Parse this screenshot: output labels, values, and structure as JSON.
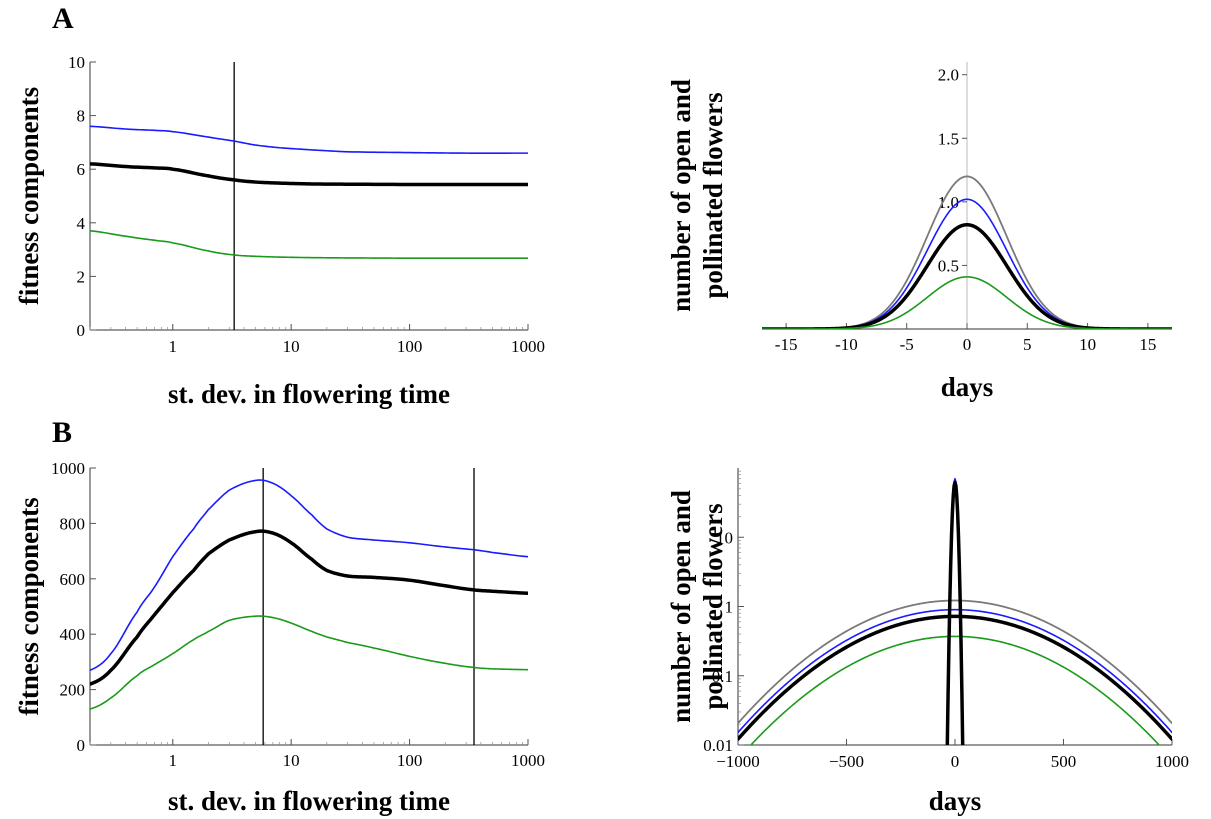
{
  "panel_labels": [
    "A",
    "B"
  ],
  "colors": {
    "blue": "#1a1aff",
    "black": "#000000",
    "green": "#1a9a1a",
    "gray": "#7a7a7a"
  },
  "chart_data": [
    {
      "id": "A-left",
      "type": "line",
      "xscale": "log",
      "xlim": [
        0.2,
        1000
      ],
      "ylim": [
        0,
        10
      ],
      "xticks": [
        {
          "v": 1,
          "label": "1"
        },
        {
          "v": 10,
          "label": "10"
        },
        {
          "v": 100,
          "label": "100"
        },
        {
          "v": 1000,
          "label": "1000"
        }
      ],
      "yticks": [
        {
          "v": 0,
          "label": "0"
        },
        {
          "v": 2,
          "label": "2"
        },
        {
          "v": 4,
          "label": "4"
        },
        {
          "v": 6,
          "label": "6"
        },
        {
          "v": 8,
          "label": "8"
        },
        {
          "v": 10,
          "label": "10"
        }
      ],
      "xlabel": "st. dev. in flowering time",
      "ylabel": "fitness components",
      "vlines": [
        3.3
      ],
      "series": [
        {
          "color": "blue",
          "width": 1.6,
          "x": [
            0.2,
            0.4,
            0.7,
            1,
            2,
            3.3,
            5,
            8,
            15,
            30,
            100,
            300,
            1000
          ],
          "y": [
            7.6,
            7.5,
            7.45,
            7.4,
            7.2,
            7.05,
            6.9,
            6.8,
            6.72,
            6.65,
            6.62,
            6.6,
            6.6
          ]
        },
        {
          "color": "black",
          "width": 3.5,
          "x": [
            0.2,
            0.4,
            0.7,
            1,
            2,
            3.3,
            5,
            8,
            15,
            30,
            100,
            300,
            1000
          ],
          "y": [
            6.2,
            6.1,
            6.05,
            6.0,
            5.75,
            5.6,
            5.52,
            5.48,
            5.45,
            5.44,
            5.43,
            5.43,
            5.43
          ]
        },
        {
          "color": "green",
          "width": 1.6,
          "x": [
            0.2,
            0.4,
            0.7,
            1,
            2,
            3.3,
            5,
            8,
            15,
            30,
            100,
            300,
            1000
          ],
          "y": [
            3.7,
            3.5,
            3.35,
            3.25,
            2.95,
            2.8,
            2.75,
            2.72,
            2.7,
            2.69,
            2.68,
            2.68,
            2.68
          ]
        }
      ]
    },
    {
      "id": "A-right",
      "type": "line",
      "xscale": "linear",
      "xlim": [
        -17,
        17
      ],
      "ylim": [
        0,
        2.1
      ],
      "xticks": [
        {
          "v": -15,
          "label": "-15"
        },
        {
          "v": -10,
          "label": "-10"
        },
        {
          "v": -5,
          "label": "-5"
        },
        {
          "v": 0,
          "label": "0"
        },
        {
          "v": 5,
          "label": "5"
        },
        {
          "v": 10,
          "label": "10"
        },
        {
          "v": 15,
          "label": "15"
        }
      ],
      "yticks": [
        {
          "v": 0.5,
          "label": "0.5"
        },
        {
          "v": 1.0,
          "label": "1.0"
        },
        {
          "v": 1.5,
          "label": "1.5"
        },
        {
          "v": 2.0,
          "label": "2.0"
        }
      ],
      "xlabel": "days",
      "ylabel_lines": [
        "number of open and",
        "pollinated flowers"
      ],
      "series": [
        {
          "color": "gray",
          "width": 1.8,
          "peak": 1.2,
          "sigma": 3.3
        },
        {
          "color": "blue",
          "width": 1.6,
          "peak": 1.02,
          "sigma": 3.3
        },
        {
          "color": "black",
          "width": 3.5,
          "peak": 0.82,
          "sigma": 3.3
        },
        {
          "color": "green",
          "width": 1.6,
          "peak": 0.41,
          "sigma": 3.3
        }
      ]
    },
    {
      "id": "B-left",
      "type": "line",
      "xscale": "log",
      "xlim": [
        0.2,
        1000
      ],
      "ylim": [
        0,
        1000
      ],
      "xticks": [
        {
          "v": 1,
          "label": "1"
        },
        {
          "v": 10,
          "label": "10"
        },
        {
          "v": 100,
          "label": "100"
        },
        {
          "v": 1000,
          "label": "1000"
        }
      ],
      "yticks": [
        {
          "v": 0,
          "label": "0"
        },
        {
          "v": 200,
          "label": "200"
        },
        {
          "v": 400,
          "label": "400"
        },
        {
          "v": 600,
          "label": "600"
        },
        {
          "v": 800,
          "label": "800"
        },
        {
          "v": 1000,
          "label": "1000"
        }
      ],
      "xlabel": "st. dev. in flowering time",
      "ylabel": "fitness components",
      "vlines": [
        5.8,
        350
      ],
      "series": [
        {
          "color": "blue",
          "width": 1.6,
          "x": [
            0.2,
            0.3,
            0.5,
            0.7,
            1,
            1.5,
            2,
            3,
            5,
            7,
            10,
            15,
            20,
            30,
            50,
            100,
            200,
            350,
            500,
            1000
          ],
          "y": [
            270,
            330,
            480,
            570,
            680,
            780,
            850,
            920,
            955,
            945,
            900,
            830,
            780,
            750,
            740,
            730,
            715,
            705,
            695,
            680
          ]
        },
        {
          "color": "black",
          "width": 3.5,
          "x": [
            0.2,
            0.3,
            0.5,
            0.7,
            1,
            1.5,
            2,
            3,
            5,
            7,
            10,
            15,
            20,
            30,
            50,
            100,
            200,
            350,
            500,
            1000
          ],
          "y": [
            220,
            270,
            390,
            470,
            550,
            630,
            690,
            740,
            770,
            765,
            730,
            670,
            630,
            610,
            605,
            595,
            575,
            560,
            555,
            548
          ]
        },
        {
          "color": "green",
          "width": 1.6,
          "x": [
            0.2,
            0.3,
            0.5,
            0.7,
            1,
            1.5,
            2,
            3,
            5,
            7,
            10,
            15,
            20,
            30,
            50,
            100,
            200,
            350,
            500,
            1000
          ],
          "y": [
            130,
            170,
            250,
            290,
            330,
            380,
            410,
            450,
            465,
            460,
            440,
            410,
            390,
            370,
            350,
            320,
            295,
            280,
            275,
            272
          ]
        }
      ]
    },
    {
      "id": "B-right",
      "type": "line",
      "xscale": "linear",
      "yscale": "log",
      "xlim": [
        -1000,
        1000
      ],
      "ylim": [
        0.01,
        100
      ],
      "xticks": [
        {
          "v": -1000,
          "label": "−1000"
        },
        {
          "v": -500,
          "label": "−500"
        },
        {
          "v": 0,
          "label": "0"
        },
        {
          "v": 500,
          "label": "500"
        },
        {
          "v": 1000,
          "label": "1000"
        }
      ],
      "yticks": [
        {
          "v": 0.01,
          "label": "0.01"
        },
        {
          "v": 0.1,
          "label": "0.1"
        },
        {
          "v": 1,
          "label": "1"
        },
        {
          "v": 10,
          "label": "10"
        }
      ],
      "xlabel": "days",
      "ylabel_lines": [
        "number of open and",
        "pollinated flowers"
      ],
      "series": [
        {
          "color": "gray",
          "width": 1.8,
          "peak": 1.22,
          "sigma": 350
        },
        {
          "color": "blue",
          "width": 1.6,
          "peak": 0.9,
          "sigma": 350
        },
        {
          "color": "black",
          "width": 3.5,
          "peak": 0.72,
          "sigma": 350
        },
        {
          "color": "green",
          "width": 1.6,
          "peak": 0.37,
          "sigma": 350
        },
        {
          "color": "blue",
          "width": 1.6,
          "peak": 70,
          "sigma": 9
        },
        {
          "color": "black",
          "width": 3.5,
          "peak": 62,
          "sigma": 8.5
        }
      ]
    }
  ]
}
